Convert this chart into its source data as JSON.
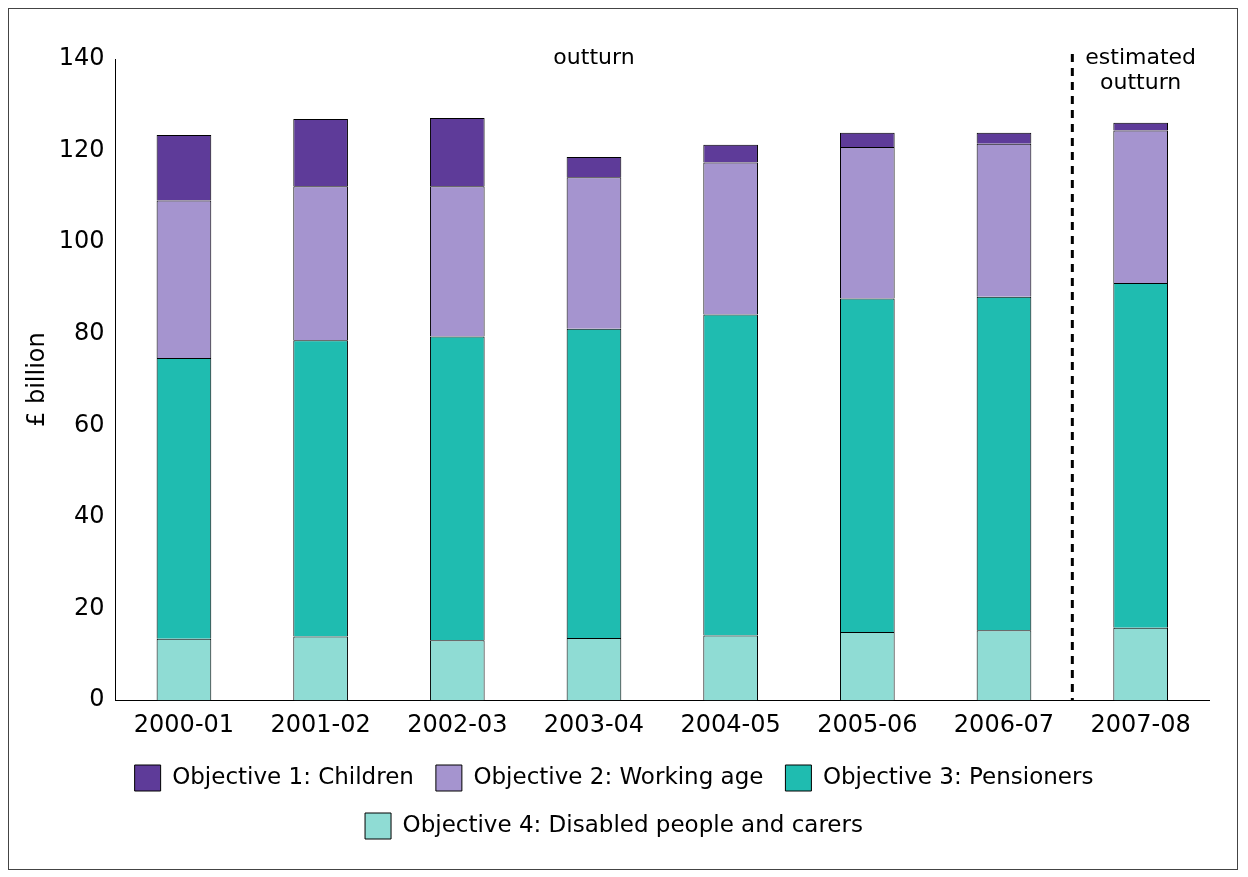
{
  "chart_data": {
    "type": "bar",
    "stacked": true,
    "ylabel": "£ billion",
    "categories": [
      "2000-01",
      "2001-02",
      "2002-03",
      "2003-04",
      "2004-05",
      "2005-06",
      "2006-07",
      "2007-08"
    ],
    "series": [
      {
        "name": "Objective 4: Disabled people and carers",
        "color": "#8fdcd4",
        "values": [
          13.4,
          13.9,
          13.1,
          13.6,
          14.1,
          14.9,
          15.3,
          15.8
        ]
      },
      {
        "name": "Objective 3: Pensioners",
        "color": "#1fbcb0",
        "values": [
          61.3,
          64.7,
          66.3,
          67.5,
          70.1,
          72.8,
          72.8,
          75.3
        ]
      },
      {
        "name": "Objective 2: Working age",
        "color": "#a594cf",
        "values": [
          34.4,
          33.6,
          32.8,
          33.1,
          33.2,
          33.1,
          33.4,
          33.3
        ]
      },
      {
        "name": "Objective 1: Children",
        "color": "#5e3b99",
        "values": [
          14.3,
          14.7,
          14.9,
          4.4,
          3.9,
          3.1,
          2.4,
          1.7
        ]
      }
    ],
    "ylim": [
      0,
      140
    ],
    "yticks": [
      0,
      20,
      40,
      60,
      80,
      100,
      120,
      140
    ],
    "grid": false,
    "legend": "bottom",
    "annotations": [
      "outturn",
      "estimated outturn"
    ]
  }
}
